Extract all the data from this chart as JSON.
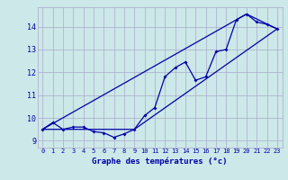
{
  "xlabel": "Graphe des températures (°c)",
  "bg_color": "#cce8e8",
  "grid_color": "#aaaacc",
  "line_color": "#0000aa",
  "xlim": [
    -0.5,
    23.5
  ],
  "ylim": [
    8.7,
    14.85
  ],
  "xticks": [
    0,
    1,
    2,
    3,
    4,
    5,
    6,
    7,
    8,
    9,
    10,
    11,
    12,
    13,
    14,
    15,
    16,
    17,
    18,
    19,
    20,
    21,
    22,
    23
  ],
  "yticks": [
    9,
    10,
    11,
    12,
    13,
    14
  ],
  "curve_main": [
    [
      0,
      9.5
    ],
    [
      1,
      9.8
    ],
    [
      2,
      9.5
    ],
    [
      3,
      9.6
    ],
    [
      4,
      9.6
    ],
    [
      5,
      9.4
    ],
    [
      6,
      9.35
    ],
    [
      7,
      9.15
    ],
    [
      8,
      9.3
    ],
    [
      9,
      9.5
    ],
    [
      10,
      10.1
    ],
    [
      11,
      10.45
    ],
    [
      12,
      11.8
    ],
    [
      13,
      12.2
    ],
    [
      14,
      12.45
    ],
    [
      15,
      11.65
    ],
    [
      16,
      11.8
    ],
    [
      17,
      12.9
    ],
    [
      18,
      13.0
    ],
    [
      19,
      14.3
    ],
    [
      20,
      14.55
    ],
    [
      21,
      14.2
    ],
    [
      22,
      14.1
    ],
    [
      23,
      13.9
    ]
  ],
  "curve_upper": [
    [
      0,
      9.5
    ],
    [
      20,
      14.55
    ],
    [
      23,
      13.9
    ]
  ],
  "curve_lower": [
    [
      0,
      9.5
    ],
    [
      9,
      9.5
    ],
    [
      23,
      13.9
    ]
  ]
}
